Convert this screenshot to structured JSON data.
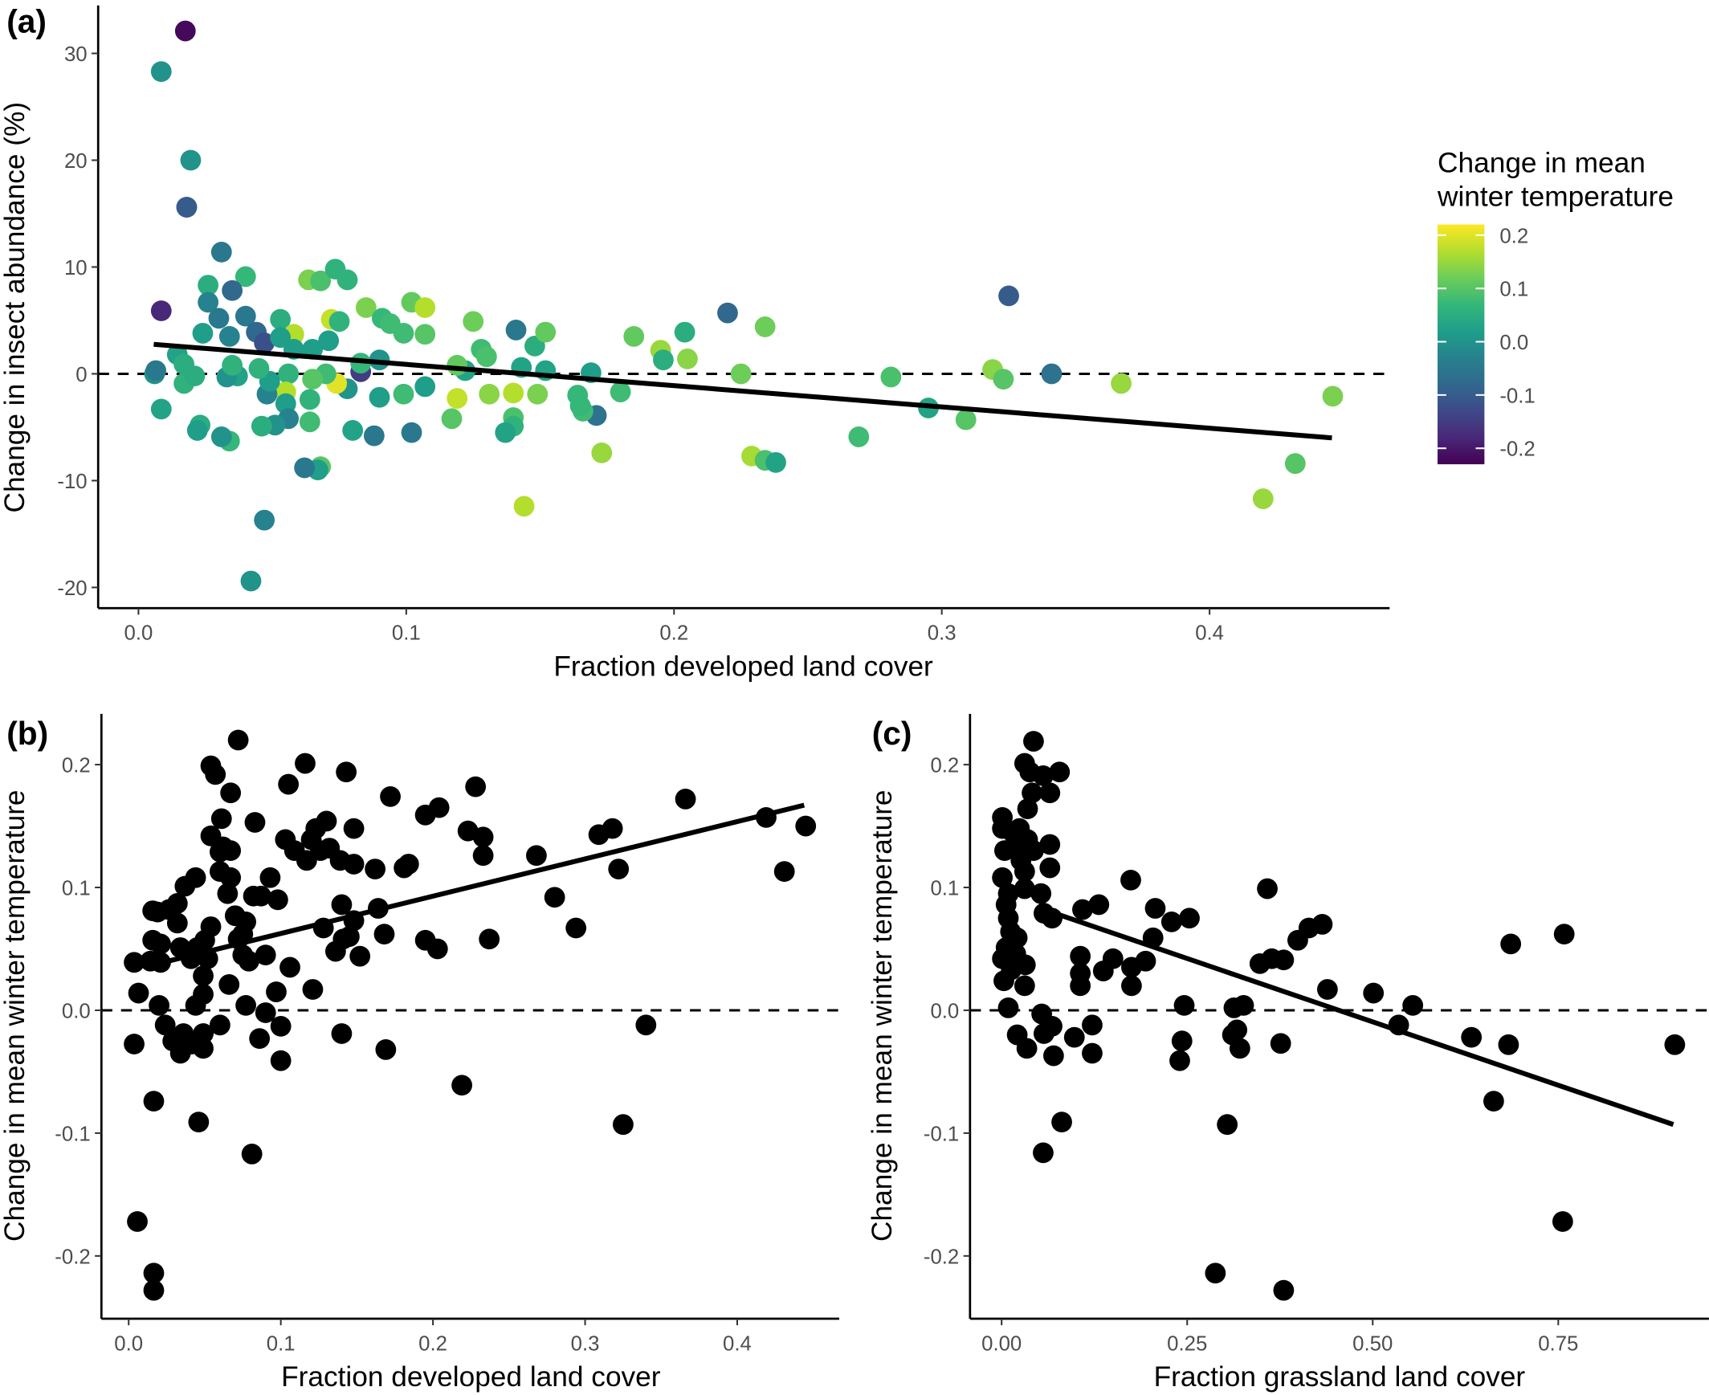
{
  "chart_data": [
    {
      "panel_label": "(a)",
      "type": "scatter",
      "xlabel": "Fraction developed land cover",
      "ylabel": "Change in insect abundance (%)",
      "xlim": [
        -0.015,
        0.467
      ],
      "ylim": [
        -22,
        34.6
      ],
      "x_ticks": [
        "0.0",
        "0.1",
        "0.2",
        "0.3",
        "0.4"
      ],
      "x_tick_values": [
        0,
        0.1,
        0.2,
        0.3,
        0.4
      ],
      "y_ticks": [
        "30",
        "20",
        "10",
        "0",
        "-10",
        "-20"
      ],
      "y_tick_values": [
        30,
        20,
        10,
        0,
        -10,
        -20
      ],
      "grid": false,
      "reference_line": {
        "y": 0,
        "style": "dashed"
      },
      "trend_line": {
        "x": [
          0.0057,
          0.4457
        ],
        "y": [
          2.76,
          -6.0
        ]
      },
      "x": [
        0.0175,
        0.0085,
        0.0195,
        0.018,
        0.018,
        0.0085,
        0.031,
        0.026,
        0.04,
        0.035,
        0.026,
        0.03,
        0.04,
        0.024,
        0.034,
        0.044,
        0.047,
        0.053,
        0.058,
        0.053,
        0.0635,
        0.068,
        0.0735,
        0.078,
        0.072,
        0.075,
        0.085,
        0.091,
        0.094,
        0.102,
        0.107,
        0.107,
        0.099,
        0.125,
        0.128,
        0.13,
        0.141,
        0.148,
        0.152,
        0.143,
        0.152,
        0.122,
        0.119,
        0.169,
        0.185,
        0.195,
        0.205,
        0.196,
        0.204,
        0.22,
        0.234,
        0.225,
        0.325,
        0.319,
        0.323,
        0.341,
        0.367,
        0.281,
        0.295,
        0.309,
        0.269,
        0.229,
        0.234,
        0.238,
        0.446,
        0.432,
        0.42,
        0.144,
        0.173,
        0.171,
        0.18,
        0.164,
        0.166,
        0.165,
        0.149,
        0.14,
        0.131,
        0.14,
        0.14,
        0.137,
        0.119,
        0.117,
        0.107,
        0.099,
        0.102,
        0.09,
        0.088,
        0.08,
        0.078,
        0.083,
        0.09,
        0.083,
        0.074,
        0.07,
        0.065,
        0.064,
        0.064,
        0.068,
        0.067,
        0.062,
        0.065,
        0.071,
        0.058,
        0.056,
        0.055,
        0.055,
        0.056,
        0.051,
        0.048,
        0.049,
        0.046,
        0.047,
        0.042,
        0.045,
        0.037,
        0.033,
        0.035,
        0.034,
        0.031,
        0.023,
        0.022,
        0.017,
        0.021,
        0.0145,
        0.017,
        0.0085,
        0.006,
        0.0065
      ],
      "y": [
        32.1,
        28.3,
        20.0,
        15.6,
        15.6,
        5.9,
        11.4,
        8.3,
        9.1,
        7.8,
        6.7,
        5.2,
        5.4,
        3.8,
        3.5,
        3.9,
        2.9,
        5.1,
        3.7,
        3.4,
        8.8,
        8.7,
        9.8,
        8.8,
        5.1,
        4.9,
        6.2,
        5.2,
        4.7,
        6.7,
        6.2,
        3.7,
        3.8,
        4.9,
        2.3,
        1.6,
        4.1,
        2.6,
        3.9,
        0.6,
        0.3,
        0.3,
        0.8,
        0.1,
        3.5,
        2.2,
        1.4,
        1.3,
        3.9,
        5.7,
        4.4,
        0.0,
        7.3,
        0.4,
        -0.5,
        0.0,
        -0.9,
        -0.3,
        -3.2,
        -4.3,
        -5.9,
        -7.7,
        -8.1,
        -8.3,
        -2.1,
        -8.4,
        -11.7,
        -12.4,
        -7.4,
        -3.9,
        -1.7,
        -2.0,
        -3.5,
        -3.0,
        -1.9,
        -1.8,
        -1.9,
        -4.1,
        -4.9,
        -5.5,
        -2.3,
        -4.2,
        -1.2,
        -1.9,
        -5.5,
        -2.2,
        -5.8,
        -5.3,
        -1.4,
        0.2,
        1.3,
        1.0,
        -0.9,
        0.0,
        -0.5,
        -2.4,
        -4.5,
        -8.7,
        -9.0,
        -8.8,
        2.3,
        3.1,
        2.3,
        0.0,
        -1.7,
        -2.8,
        -4.2,
        -4.8,
        -1.9,
        -0.7,
        -4.9,
        -13.7,
        -19.4,
        0.5,
        -0.2,
        -0.3,
        0.8,
        -6.3,
        -5.9,
        -4.8,
        -5.3,
        -0.9,
        -0.2,
        1.8,
        0.9,
        -3.3,
        0.0,
        0.3
      ],
      "color_value": [
        -0.22,
        0.0,
        0.0,
        -0.18,
        -0.1,
        -0.18,
        -0.05,
        0.05,
        0.07,
        -0.08,
        -0.03,
        -0.05,
        -0.05,
        0.02,
        -0.03,
        -0.08,
        -0.12,
        0.05,
        0.17,
        0.02,
        0.13,
        0.09,
        0.06,
        0.06,
        0.18,
        0.06,
        0.13,
        0.07,
        0.08,
        0.11,
        0.17,
        0.1,
        0.08,
        0.12,
        0.08,
        0.09,
        -0.05,
        0.05,
        0.11,
        0.03,
        0.03,
        0.03,
        0.11,
        0.02,
        0.11,
        0.15,
        0.14,
        0.05,
        0.05,
        -0.08,
        0.12,
        0.12,
        -0.1,
        0.14,
        0.1,
        -0.06,
        0.15,
        0.09,
        0.03,
        0.1,
        0.08,
        0.16,
        0.09,
        0.03,
        0.13,
        0.1,
        0.15,
        0.17,
        0.15,
        -0.06,
        0.08,
        0.07,
        0.08,
        0.07,
        0.13,
        0.17,
        0.14,
        0.09,
        0.06,
        0.03,
        0.18,
        0.1,
        0.02,
        0.08,
        -0.05,
        0.02,
        -0.05,
        0.03,
        0.0,
        -0.15,
        0.0,
        0.07,
        0.2,
        0.08,
        0.1,
        0.06,
        0.08,
        0.1,
        0.02,
        -0.05,
        0.02,
        0.02,
        0.02,
        0.06,
        0.17,
        0.02,
        -0.03,
        0.0,
        -0.03,
        0.02,
        0.05,
        -0.03,
        0.0,
        0.06,
        0.03,
        0.0,
        0.06,
        0.07,
        0.0,
        0.05,
        0.02,
        0.06,
        0.05,
        0.03,
        0.05,
        0.03,
        0.0,
        -0.05
      ],
      "colorbar": {
        "title": [
          "Change in mean",
          "winter temperature"
        ],
        "ticks": [
          "0.2",
          "0.1",
          "0.0",
          "-0.1",
          "-0.2"
        ],
        "tick_values": [
          0.2,
          0.1,
          0.0,
          -0.1,
          -0.2
        ],
        "range": [
          -0.23,
          0.22
        ],
        "colormap": "viridis",
        "stops": [
          "#440154",
          "#482878",
          "#3E4A89",
          "#31688E",
          "#26828E",
          "#1F9E89",
          "#35B779",
          "#6DCD59",
          "#B4DE2C",
          "#FDE725"
        ],
        "placement": "right"
      }
    },
    {
      "panel_label": "(b)",
      "type": "scatter",
      "xlabel": "Fraction developed land cover",
      "ylabel": "Change in mean winter temperature",
      "x_ticks": [
        "0.0",
        "0.1",
        "0.2",
        "0.3",
        "0.4"
      ],
      "x_tick_values": [
        0,
        0.1,
        0.2,
        0.3,
        0.4
      ],
      "y_ticks": [
        "0.2",
        "0.1",
        "0.0",
        "-0.1",
        "-0.2"
      ],
      "y_tick_values": [
        0.2,
        0.1,
        0.0,
        -0.1,
        -0.2
      ],
      "grid": false,
      "point_color": "#000000",
      "reference_line": {
        "y": 0,
        "style": "dashed"
      },
      "trend_line": {
        "x": [
          0.016,
          0.444
        ],
        "y": [
          0.037,
          0.167
        ]
      },
      "x": [
        0.0057,
        0.0165,
        0.0165,
        0.0165,
        0.0036,
        0.0036,
        0.0065,
        0.0143,
        0.0158,
        0.0158,
        0.019,
        0.021,
        0.021,
        0.0265,
        0.032,
        0.032,
        0.037,
        0.044,
        0.041,
        0.034,
        0.02,
        0.024,
        0.029,
        0.034,
        0.036,
        0.0415,
        0.049,
        0.049,
        0.044,
        0.049,
        0.049,
        0.052,
        0.05,
        0.045,
        0.054,
        0.054,
        0.054,
        0.057,
        0.061,
        0.062,
        0.06,
        0.067,
        0.067,
        0.072,
        0.067,
        0.06,
        0.065,
        0.07,
        0.072,
        0.075,
        0.077,
        0.075,
        0.066,
        0.06,
        0.046,
        0.077,
        0.079,
        0.083,
        0.082,
        0.087,
        0.09,
        0.086,
        0.081,
        0.09,
        0.093,
        0.098,
        0.097,
        0.1,
        0.1,
        0.103,
        0.105,
        0.106,
        0.109,
        0.116,
        0.117,
        0.12,
        0.123,
        0.121,
        0.126,
        0.13,
        0.128,
        0.132,
        0.136,
        0.139,
        0.14,
        0.141,
        0.14,
        0.143,
        0.145,
        0.148,
        0.148,
        0.148,
        0.152,
        0.162,
        0.164,
        0.169,
        0.168,
        0.172,
        0.181,
        0.184,
        0.195,
        0.195,
        0.204,
        0.203,
        0.219,
        0.223,
        0.228,
        0.233,
        0.233,
        0.237,
        0.268,
        0.28,
        0.294,
        0.309,
        0.318,
        0.322,
        0.325,
        0.34,
        0.366,
        0.419,
        0.431,
        0.445
      ],
      "y": [
        -0.172,
        -0.214,
        -0.228,
        -0.074,
        -0.0275,
        0.039,
        0.014,
        0.04,
        0.057,
        0.081,
        0.08,
        0.054,
        0.039,
        0.082,
        0.087,
        0.071,
        0.101,
        0.108,
        0.042,
        0.051,
        0.004,
        -0.012,
        -0.025,
        -0.035,
        -0.019,
        -0.0275,
        -0.019,
        -0.031,
        0.004,
        0.013,
        0.028,
        0.042,
        0.057,
        0.051,
        0.068,
        0.142,
        0.199,
        0.192,
        0.156,
        0.133,
        0.129,
        0.13,
        0.177,
        0.22,
        0.108,
        0.113,
        0.095,
        0.077,
        0.058,
        0.062,
        0.072,
        0.045,
        0.021,
        -0.012,
        -0.091,
        0.004,
        0.04,
        0.153,
        0.093,
        0.093,
        -0.002,
        -0.023,
        -0.117,
        0.045,
        0.108,
        0.09,
        0.015,
        -0.013,
        -0.041,
        0.139,
        0.184,
        0.035,
        0.13,
        0.201,
        0.122,
        0.139,
        0.148,
        0.017,
        0.13,
        0.154,
        0.067,
        0.132,
        0.048,
        0.122,
        0.086,
        0.058,
        -0.019,
        0.194,
        0.06,
        0.073,
        0.148,
        0.119,
        0.044,
        0.115,
        0.083,
        -0.032,
        0.062,
        0.174,
        0.116,
        0.119,
        0.057,
        0.159,
        0.165,
        0.05,
        -0.061,
        0.146,
        0.182,
        0.141,
        0.126,
        0.058,
        0.126,
        0.092,
        0.067,
        0.143,
        0.148,
        0.115,
        -0.093,
        -0.012,
        0.172,
        0.157,
        0.113,
        0.15
      ]
    },
    {
      "panel_label": "(c)",
      "type": "scatter",
      "xlabel": "Fraction grassland land cover",
      "ylabel": "Change in mean winter temperature",
      "x_ticks": [
        "0.00",
        "0.25",
        "0.50",
        "0.75"
      ],
      "x_tick_values": [
        0,
        0.25,
        0.5,
        0.75
      ],
      "y_ticks": [
        "0.2",
        "0.1",
        "0.0",
        "-0.1",
        "-0.2"
      ],
      "y_tick_values": [
        0.2,
        0.1,
        0.0,
        -0.1,
        -0.2
      ],
      "grid": false,
      "point_color": "#000000",
      "reference_line": {
        "y": 0,
        "style": "dashed"
      },
      "trend_line": {
        "x": [
          0.057,
          0.905
        ],
        "y": [
          0.082,
          -0.093
        ]
      },
      "x": [
        0.907,
        0.756,
        0.758,
        0.686,
        0.683,
        0.663,
        0.633,
        0.554,
        0.535,
        0.501,
        0.439,
        0.432,
        0.414,
        0.399,
        0.38,
        0.364,
        0.348,
        0.358,
        0.376,
        0.38,
        0.326,
        0.313,
        0.317,
        0.321,
        0.311,
        0.304,
        0.288,
        0.253,
        0.246,
        0.243,
        0.24,
        0.229,
        0.207,
        0.204,
        0.194,
        0.175,
        0.174,
        0.175,
        0.15,
        0.137,
        0.131,
        0.109,
        0.106,
        0.106,
        0.106,
        0.122,
        0.122,
        0.098,
        0.081,
        0.07,
        0.068,
        0.056,
        0.054,
        0.057,
        0.065,
        0.065,
        0.078,
        0.065,
        0.056,
        0.043,
        0.031,
        0.038,
        0.041,
        0.035,
        0.021,
        0.034,
        0.031,
        0.032,
        0.019,
        0.021,
        0.009,
        0.009,
        0.001,
        0.001,
        0.001,
        0.004,
        0.009,
        0.013,
        0.016,
        0.024,
        0.026,
        0.024,
        0.031,
        0.031,
        0.035,
        0.043,
        0.053,
        0.057,
        0.068,
        0.001,
        0.003,
        0.012,
        0.006,
        0.006
      ],
      "y": [
        -0.028,
        -0.172,
        0.062,
        0.054,
        -0.028,
        -0.074,
        -0.022,
        0.004,
        -0.012,
        0.014,
        0.017,
        0.07,
        0.067,
        0.057,
        0.041,
        0.042,
        0.038,
        0.099,
        -0.027,
        -0.228,
        0.004,
        0.002,
        -0.016,
        -0.031,
        -0.02,
        -0.093,
        -0.214,
        0.075,
        0.004,
        -0.025,
        -0.041,
        0.072,
        0.083,
        0.059,
        0.04,
        0.035,
        0.106,
        0.02,
        0.042,
        0.032,
        0.086,
        0.082,
        0.044,
        0.03,
        0.02,
        -0.012,
        -0.035,
        -0.022,
        -0.091,
        -0.037,
        -0.013,
        -0.116,
        -0.003,
        -0.019,
        0.116,
        0.135,
        0.194,
        0.177,
        0.191,
        0.219,
        0.201,
        0.194,
        0.177,
        0.164,
        -0.02,
        -0.031,
        0.02,
        0.037,
        0.046,
        0.059,
        0.075,
        0.095,
        0.108,
        0.148,
        0.157,
        0.13,
        0.002,
        0.033,
        0.144,
        0.13,
        0.122,
        0.148,
        0.113,
        0.099,
        0.139,
        0.13,
        0.095,
        0.079,
        0.075,
        0.042,
        0.024,
        0.064,
        0.051,
        0.086
      ]
    }
  ]
}
